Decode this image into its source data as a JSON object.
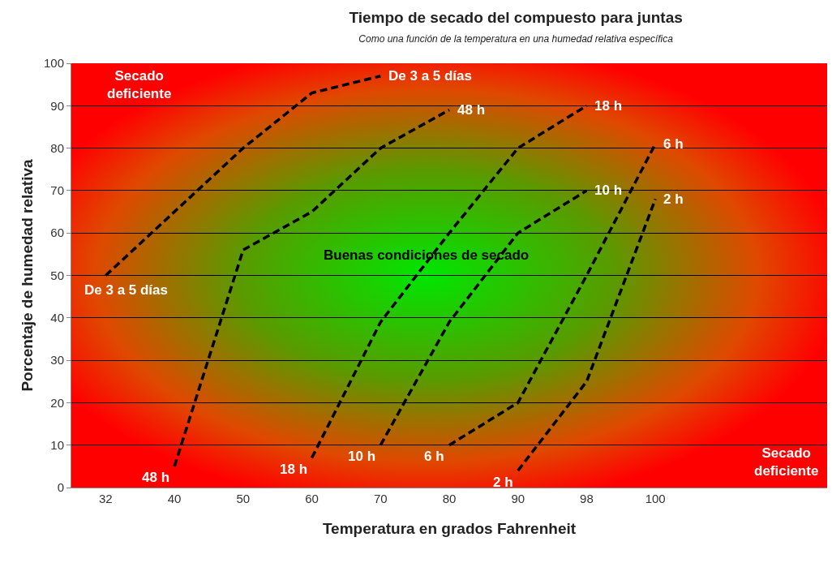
{
  "chart_data": {
    "type": "line",
    "title": "Tiempo de secado del compuesto para juntas",
    "subtitle": "Como una función de la temperatura en una humedad relativa específica",
    "xlabel": "Temperatura en grados Fahrenheit",
    "ylabel": "Porcentaje de humedad relativa",
    "categories": [
      "32",
      "40",
      "50",
      "60",
      "70",
      "80",
      "90",
      "98",
      "100",
      null,
      null
    ],
    "ylim": [
      0,
      100
    ],
    "yticks": [
      0,
      10,
      20,
      30,
      40,
      50,
      60,
      70,
      80,
      90,
      100
    ],
    "grid": "y",
    "line_style": "dashed",
    "series": [
      {
        "name": "De 3 a 5 días",
        "color": "#000000",
        "values": [
          50,
          null,
          80,
          93,
          97,
          null,
          null,
          null,
          null,
          null,
          null
        ]
      },
      {
        "name": "48 h",
        "color": "#000000",
        "values": [
          null,
          5,
          56,
          65,
          80,
          89,
          null,
          null,
          null,
          null,
          null
        ]
      },
      {
        "name": "18 h",
        "color": "#000000",
        "values": [
          null,
          null,
          null,
          7,
          39,
          60,
          80,
          90,
          null,
          null,
          null
        ]
      },
      {
        "name": "10 h",
        "color": "#000000",
        "values": [
          null,
          null,
          null,
          null,
          10,
          39,
          60,
          70,
          null,
          null,
          null
        ]
      },
      {
        "name": "6 h",
        "color": "#000000",
        "values": [
          null,
          null,
          null,
          null,
          null,
          10,
          20,
          50,
          81,
          null,
          null
        ]
      },
      {
        "name": "2 h",
        "color": "#000000",
        "values": [
          null,
          null,
          null,
          null,
          null,
          null,
          4,
          25,
          68,
          null,
          null
        ]
      }
    ],
    "annotations": [
      "Secado deficiente",
      "Buenas condiciones de secado",
      "Secado deficiente"
    ]
  }
}
